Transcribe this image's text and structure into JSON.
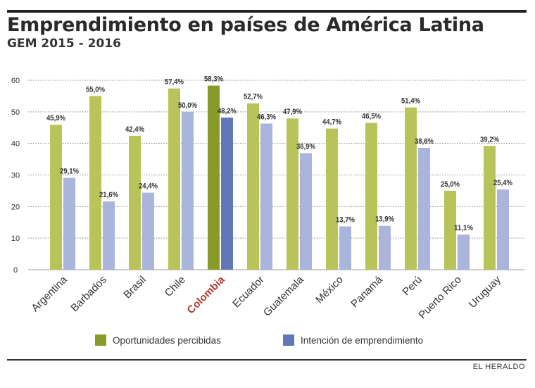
{
  "header": {
    "title": "Emprendimiento en países de América Latina",
    "subtitle": "GEM 2015 - 2016"
  },
  "footer": {
    "source": "EL HERALDO"
  },
  "colors": {
    "series1": "#b8c35a",
    "series2": "#a9b5db",
    "series1_highlight": "#8a9a2a",
    "series2_highlight": "#6277b8",
    "highlight_label": "#b03a2e"
  },
  "chart_data": {
    "type": "bar",
    "categories": [
      "Argentina",
      "Barbados",
      "Brasil",
      "Chile",
      "Colombia",
      "Ecuador",
      "Guatemala",
      "México",
      "Panamá",
      "Perú",
      "Puerto Rico",
      "Uruguay"
    ],
    "highlight_category": "Colombia",
    "series": [
      {
        "name": "Oportunidades percibidas",
        "values": [
          45.9,
          55.0,
          42.4,
          57.4,
          58.3,
          52.7,
          47.9,
          44.7,
          46.5,
          51.4,
          25.0,
          39.2
        ],
        "labels": [
          "45,9%",
          "55,0%",
          "42,4%",
          "57,4%",
          "58,3%",
          "52,7%",
          "47,9%",
          "44,7%",
          "46,5%",
          "51,4%",
          "25,0%",
          "39,2%"
        ]
      },
      {
        "name": "Intención de emprendimiento",
        "values": [
          29.1,
          21.6,
          24.4,
          50.0,
          48.2,
          46.3,
          36.9,
          13.7,
          13.9,
          38.6,
          11.1,
          25.4
        ],
        "labels": [
          "29,1%",
          "21,6%",
          "24,4%",
          "50,0%",
          "48,2%",
          "46,3%",
          "36,9%",
          "13,7%",
          "13,9%",
          "38,6%",
          "11,1%",
          "25,4%"
        ]
      }
    ],
    "ylim": [
      0,
      60
    ],
    "yticks": [
      "0",
      "10",
      "20",
      "30",
      "40",
      "50",
      "60"
    ],
    "grid": true,
    "legend_position": "bottom"
  }
}
